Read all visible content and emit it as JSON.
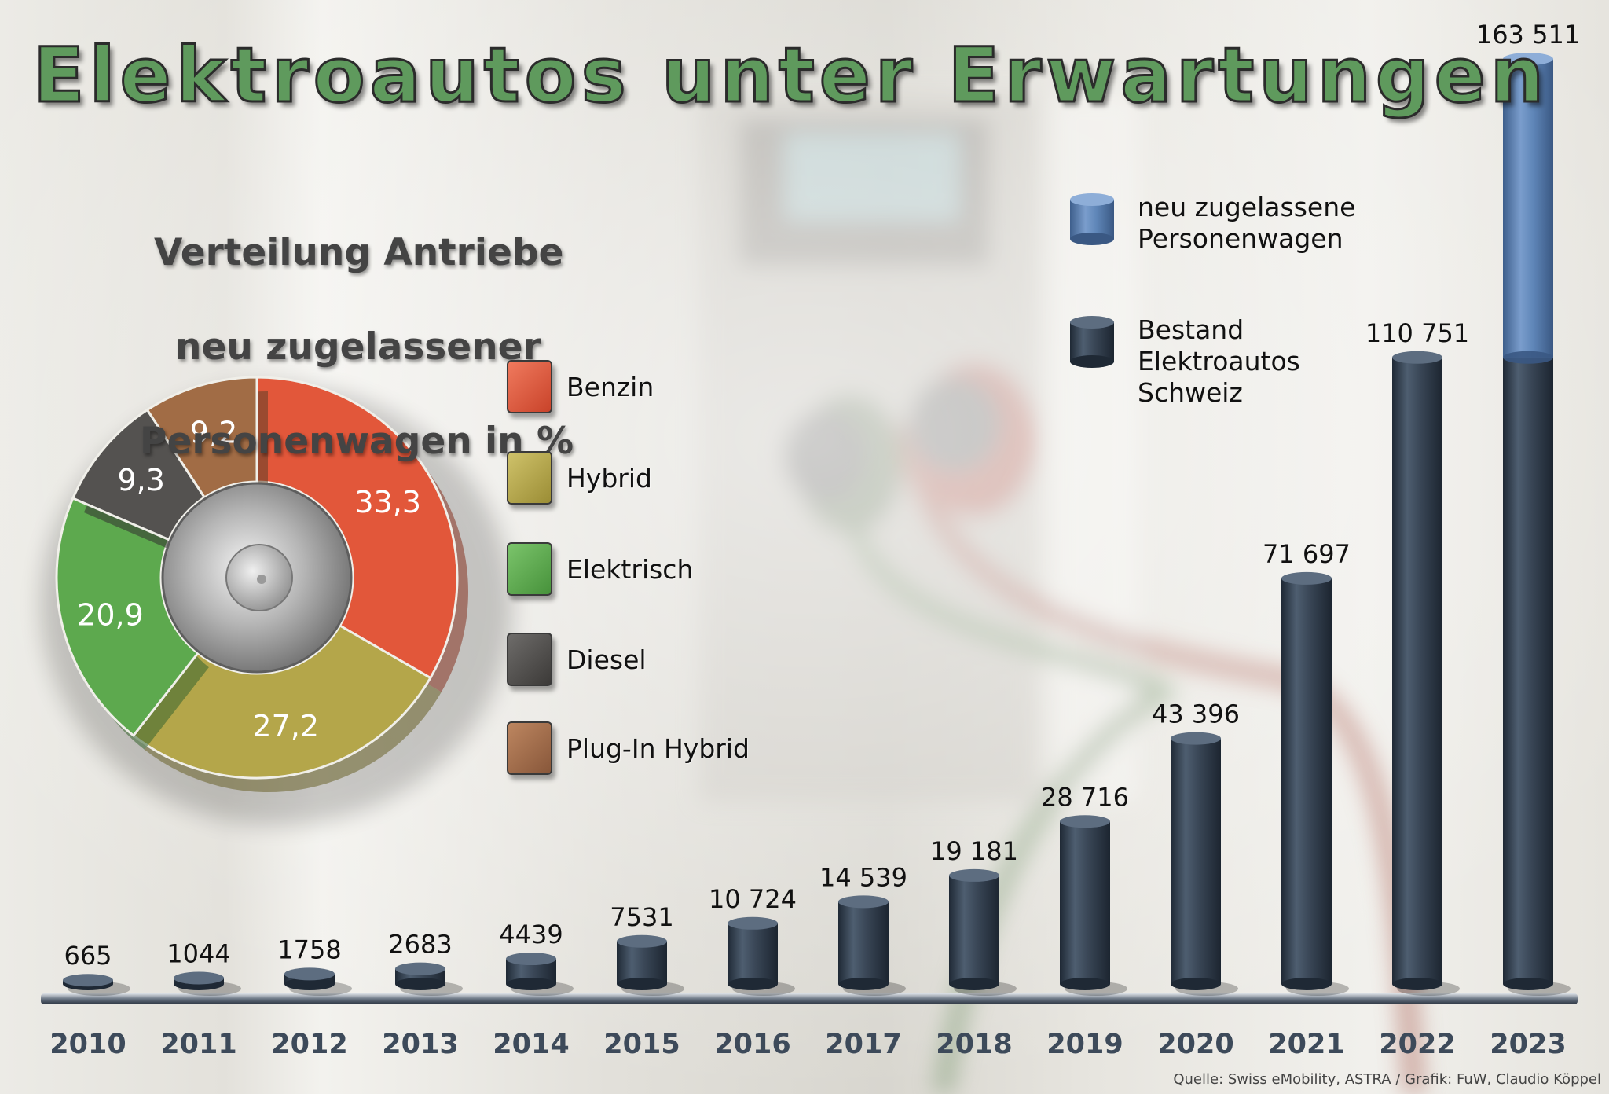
{
  "title": "Elektroautos unter Erwartungen",
  "source": "Quelle: Swiss eMobility, ASTRA / Grafik: FuW, Claudio Köppel",
  "chart_data": [
    {
      "type": "pie",
      "title_lines": [
        "Verteilung Antriebe",
        "neu zugelassener",
        "Personenwagen in %"
      ],
      "slices": [
        {
          "label": "Benzin",
          "value": 33.3,
          "value_text": "33,3",
          "color": "#e2573a"
        },
        {
          "label": "Hybrid",
          "value": 27.2,
          "value_text": "27,2",
          "color": "#b4a64a"
        },
        {
          "label": "Elektrisch",
          "value": 20.9,
          "value_text": "20,9",
          "color": "#5da94e"
        },
        {
          "label": "Diesel",
          "value": 9.3,
          "value_text": "9,3",
          "color": "#545250"
        },
        {
          "label": "Plug-In Hybrid",
          "value": 9.2,
          "value_text": "9,2",
          "color": "#a16c45"
        }
      ]
    },
    {
      "type": "bar",
      "categories": [
        "2010",
        "2011",
        "2012",
        "2013",
        "2014",
        "2015",
        "2016",
        "2017",
        "2018",
        "2019",
        "2020",
        "2021",
        "2022",
        "2023"
      ],
      "series": [
        {
          "name": "Bestand Elektroautos Schweiz",
          "color": "#3c4a5a",
          "values": [
            665,
            1044,
            1758,
            2683,
            4439,
            7531,
            10724,
            14539,
            19181,
            28716,
            43396,
            71697,
            110751,
            163511
          ]
        },
        {
          "name": "neu zugelassene Personenwagen",
          "color": "#5f86b8",
          "values": [
            null,
            null,
            null,
            null,
            null,
            null,
            null,
            null,
            null,
            null,
            null,
            null,
            null,
            163511
          ]
        }
      ],
      "series_legend_lines": [
        [
          "neu zugelassene",
          "Personenwagen"
        ],
        [
          "Bestand",
          "Elektroautos",
          "Schweiz"
        ]
      ],
      "value_labels": [
        "665",
        "1044",
        "1758",
        "2683",
        "4439",
        "7531",
        "10 724",
        "14 539",
        "19 181",
        "28 716",
        "43 396",
        "71 697",
        "110 751",
        "163 511"
      ],
      "stack_split_2023": 110751,
      "ylim": [
        0,
        163511
      ]
    }
  ]
}
